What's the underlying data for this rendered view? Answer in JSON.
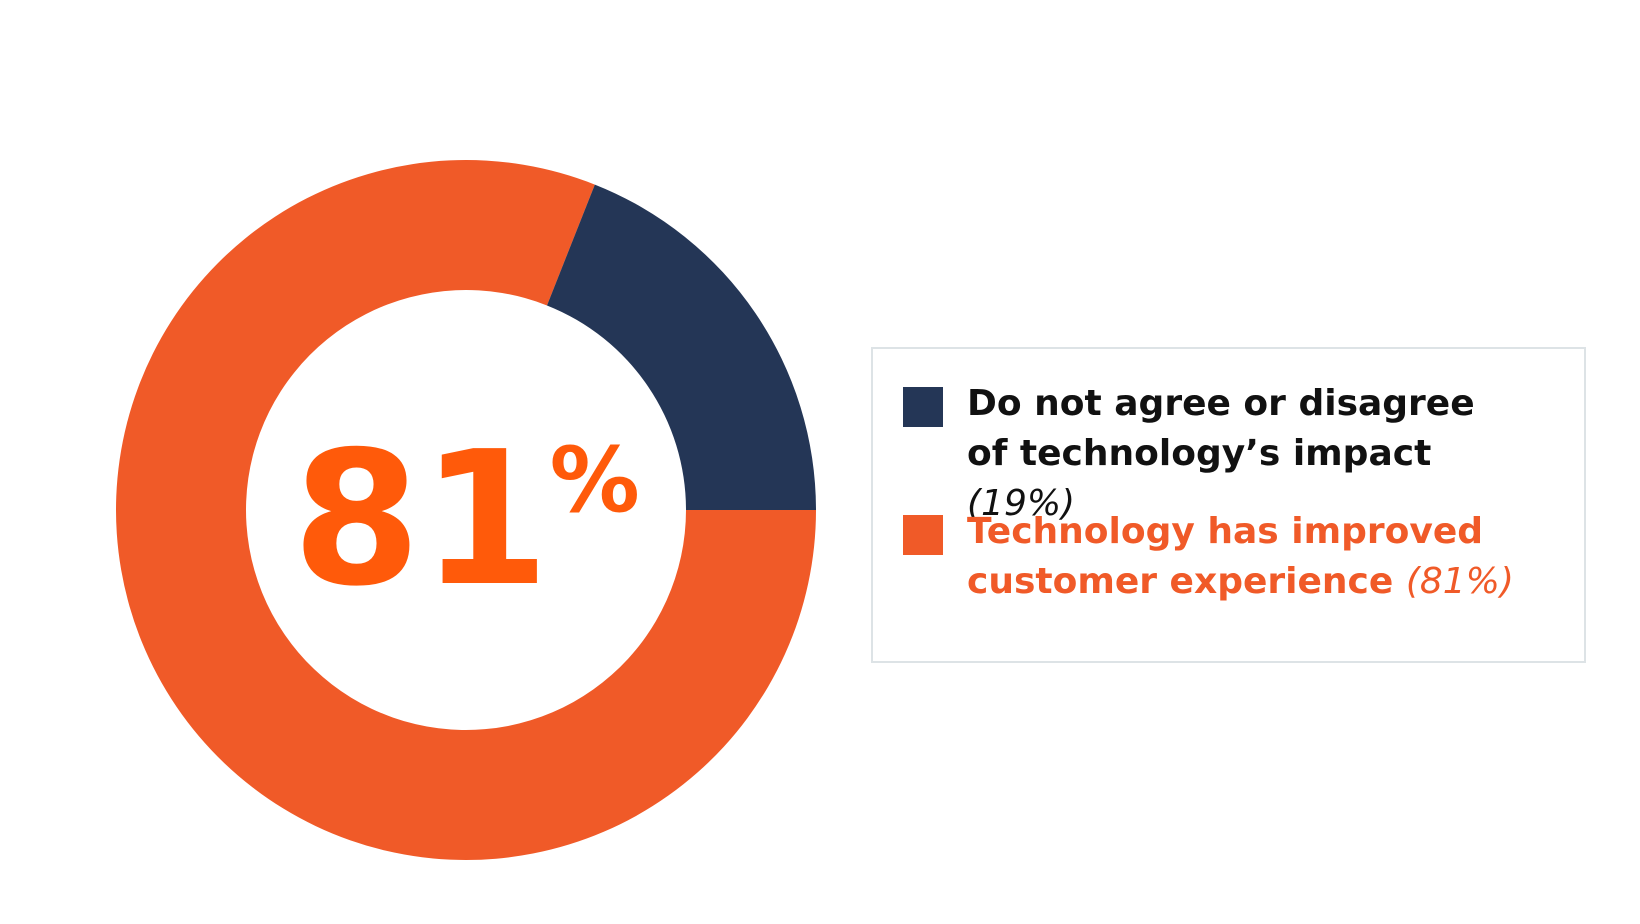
{
  "chart_data": {
    "type": "donut",
    "center_label": "81",
    "center_label_unit": "%",
    "categories": [
      "Do not agree or disagree of technology’s impact",
      "Technology has improved customer experience"
    ],
    "values": [
      19,
      81
    ],
    "value_labels": [
      "(19%)",
      "(81%)"
    ],
    "colors": [
      "#243656",
      "#f05a28"
    ],
    "label_colors": [
      "#111111",
      "#f05a28"
    ],
    "center_color": "#ff5a0a"
  }
}
